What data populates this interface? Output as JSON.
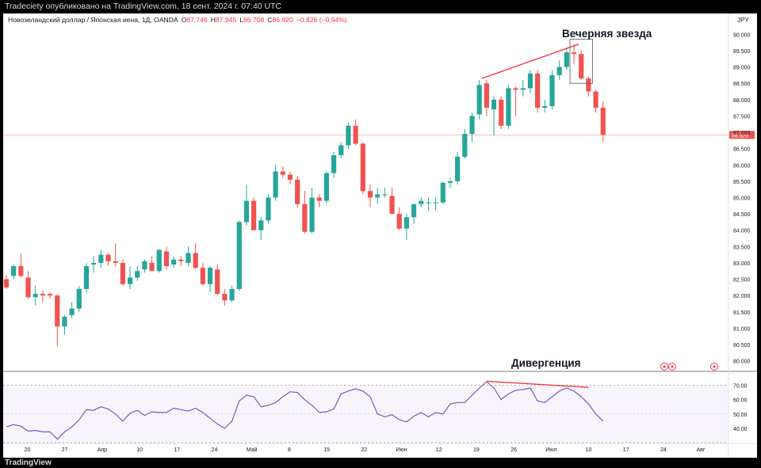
{
  "header": {
    "published": "Tradeciety опубликовано на TradingView.com, 18 сент. 2024 г. 07:40 UTC"
  },
  "footer": {
    "logo_text": "TradingView"
  },
  "symbol": {
    "name": "Новозеландский доллар / Японская иена, 1Д, OANDA",
    "o_label": "O",
    "o_value": "87.746",
    "h_label": "H",
    "h_value": "87.945",
    "l_label": "L",
    "l_value": "86.708",
    "c_label": "C",
    "c_value": "86.920",
    "change": "−0.826 (−0.94%)",
    "currency": "JPY",
    "last_price": "86.920"
  },
  "annotations": {
    "evening_star": "Вечерняя звезда",
    "divergence": "Дивергенция"
  },
  "colors": {
    "up": "#26a69a",
    "down": "#ef5350",
    "rsi_line": "#7e57c2",
    "rsi_band": "#7e57c2",
    "trendline": "#f23645",
    "price_line": "#f7a9a9",
    "background": "#ffffff"
  },
  "chart_data": [
    {
      "type": "candlestick",
      "x_tick_labels": [
        "20",
        "27",
        "Апр",
        "10",
        "17",
        "24",
        "Май",
        "8",
        "15",
        "22",
        "Июн",
        "12",
        "19",
        "26",
        "Июл",
        "10",
        "17",
        "24",
        "Авг"
      ],
      "y_ticks": [
        80.0,
        80.5,
        81.0,
        81.5,
        82.0,
        82.5,
        83.0,
        83.5,
        84.0,
        84.5,
        85.0,
        85.5,
        86.0,
        86.5,
        87.0,
        87.5,
        88.0,
        88.5,
        89.0,
        89.5,
        90.0
      ],
      "y_tick_labels": [
        "80.000",
        "80.500",
        "81.000",
        "81.500",
        "82.000",
        "82.500",
        "83.000",
        "83.500",
        "84.000",
        "84.500",
        "85.000",
        "85.500",
        "86.000",
        "86.500",
        "87.000",
        "87.500",
        "88.000",
        "88.500",
        "89.000",
        "89.500",
        "90.000"
      ],
      "ylim": [
        79.7,
        90.3
      ],
      "candles": [
        [
          82.5,
          82.62,
          82.2,
          82.25
        ],
        [
          82.6,
          82.95,
          82.5,
          82.9
        ],
        [
          82.9,
          83.3,
          82.55,
          82.6
        ],
        [
          82.55,
          82.75,
          81.9,
          81.95
        ],
        [
          81.95,
          82.3,
          81.7,
          82.05
        ],
        [
          82.05,
          82.15,
          81.8,
          82.0
        ],
        [
          82.05,
          82.1,
          81.9,
          82.0
        ],
        [
          82.0,
          82.05,
          80.45,
          81.05
        ],
        [
          81.05,
          81.4,
          80.8,
          81.35
        ],
        [
          81.4,
          81.8,
          81.3,
          81.6
        ],
        [
          81.6,
          82.3,
          81.5,
          82.2
        ],
        [
          82.2,
          83.0,
          82.1,
          82.9
        ],
        [
          82.95,
          83.2,
          82.7,
          83.0
        ],
        [
          83.0,
          83.4,
          82.85,
          83.25
        ],
        [
          83.25,
          83.3,
          82.9,
          83.05
        ],
        [
          83.05,
          83.6,
          82.9,
          83.0
        ],
        [
          83.0,
          83.1,
          82.3,
          82.35
        ],
        [
          82.35,
          82.9,
          82.2,
          82.55
        ],
        [
          82.55,
          82.9,
          82.45,
          82.75
        ],
        [
          82.8,
          83.1,
          82.7,
          83.05
        ],
        [
          83.0,
          83.2,
          82.8,
          82.75
        ],
        [
          82.75,
          83.4,
          82.7,
          83.4
        ],
        [
          83.35,
          83.5,
          82.8,
          82.9
        ],
        [
          82.95,
          83.2,
          82.85,
          83.1
        ],
        [
          83.1,
          83.2,
          82.9,
          83.05
        ],
        [
          83.0,
          83.5,
          82.9,
          83.3
        ],
        [
          83.3,
          83.6,
          82.8,
          82.85
        ],
        [
          82.85,
          83.0,
          82.3,
          82.35
        ],
        [
          82.35,
          82.9,
          82.1,
          82.85
        ],
        [
          82.8,
          82.95,
          82.0,
          82.05
        ],
        [
          82.05,
          82.2,
          81.7,
          81.85
        ],
        [
          81.85,
          82.3,
          81.8,
          82.2
        ],
        [
          82.2,
          84.3,
          82.15,
          84.25
        ],
        [
          84.25,
          85.4,
          84.15,
          84.9
        ],
        [
          84.9,
          85.0,
          84.1,
          84.0
        ],
        [
          84.0,
          84.4,
          83.7,
          84.3
        ],
        [
          84.3,
          85.1,
          84.2,
          85.0
        ],
        [
          85.0,
          86.0,
          84.9,
          85.8
        ],
        [
          85.8,
          85.95,
          85.6,
          85.7
        ],
        [
          85.7,
          85.8,
          85.4,
          85.55
        ],
        [
          85.55,
          85.65,
          84.7,
          84.8
        ],
        [
          84.8,
          85.2,
          83.9,
          83.95
        ],
        [
          83.95,
          85.3,
          83.9,
          85.0
        ],
        [
          85.0,
          85.1,
          84.7,
          84.9
        ],
        [
          84.9,
          85.8,
          84.8,
          85.75
        ],
        [
          85.75,
          86.4,
          85.6,
          86.3
        ],
        [
          86.3,
          86.7,
          86.2,
          86.6
        ],
        [
          86.6,
          87.3,
          86.5,
          87.2
        ],
        [
          87.2,
          87.4,
          86.6,
          86.65
        ],
        [
          86.65,
          86.7,
          85.1,
          85.2
        ],
        [
          85.2,
          85.4,
          84.7,
          85.0
        ],
        [
          85.0,
          85.3,
          84.8,
          85.1
        ],
        [
          85.1,
          85.3,
          85.0,
          85.1
        ],
        [
          85.05,
          85.3,
          84.5,
          84.5
        ],
        [
          84.5,
          84.7,
          84.0,
          84.05
        ],
        [
          84.05,
          84.5,
          83.7,
          84.4
        ],
        [
          84.4,
          84.8,
          84.2,
          84.8
        ],
        [
          84.8,
          85.0,
          84.7,
          84.9
        ],
        [
          84.85,
          85.0,
          84.6,
          84.85
        ],
        [
          84.85,
          85.0,
          84.6,
          84.85
        ],
        [
          84.85,
          85.5,
          84.8,
          85.45
        ],
        [
          85.45,
          85.6,
          85.3,
          85.5
        ],
        [
          85.5,
          86.4,
          85.4,
          86.25
        ],
        [
          86.25,
          87.1,
          86.2,
          86.95
        ],
        [
          86.95,
          87.6,
          86.7,
          87.5
        ],
        [
          87.55,
          88.6,
          87.4,
          88.45
        ],
        [
          88.5,
          88.6,
          87.5,
          87.75
        ],
        [
          87.7,
          88.1,
          86.9,
          88.0
        ],
        [
          88.0,
          88.1,
          87.1,
          87.2
        ],
        [
          87.2,
          88.45,
          87.1,
          88.35
        ],
        [
          88.35,
          88.4,
          87.5,
          88.3
        ],
        [
          88.3,
          88.6,
          88.1,
          88.35
        ],
        [
          88.35,
          88.9,
          88.2,
          88.8
        ],
        [
          88.8,
          88.9,
          87.6,
          87.75
        ],
        [
          87.75,
          88.0,
          87.6,
          87.8
        ],
        [
          87.8,
          88.9,
          87.7,
          88.75
        ],
        [
          88.75,
          89.2,
          88.6,
          89.0
        ],
        [
          89.0,
          89.6,
          88.9,
          89.45
        ],
        [
          89.45,
          89.7,
          89.1,
          89.4
        ],
        [
          89.4,
          89.5,
          88.6,
          88.65
        ],
        [
          88.65,
          88.7,
          88.1,
          88.25
        ],
        [
          88.25,
          88.3,
          87.6,
          87.75
        ],
        [
          87.75,
          87.95,
          86.71,
          86.92
        ]
      ]
    },
    {
      "type": "line",
      "y_ticks": [
        40.0,
        50.0,
        60.0,
        70.0
      ],
      "y_tick_labels": [
        "40.00",
        "50.00",
        "60.00",
        "70.00"
      ],
      "ylim": [
        30.0,
        78.0
      ],
      "bands": [
        30,
        70
      ],
      "series": [
        {
          "values": [
            41,
            42.5,
            41.5,
            38,
            38.5,
            37.5,
            37.5,
            32.5,
            37.5,
            41,
            46,
            53,
            52.5,
            55,
            53.5,
            50,
            45,
            50.5,
            52.5,
            49,
            51.5,
            51,
            51,
            54,
            53,
            52,
            54,
            51,
            47,
            43,
            40,
            45,
            59,
            63,
            62,
            55,
            56,
            58,
            62,
            65.5,
            65,
            60,
            56,
            51,
            51.5,
            53.5,
            64,
            66,
            67.5,
            66,
            62,
            50,
            48,
            49.5,
            46,
            44.5,
            48.5,
            51,
            48,
            51,
            50,
            57,
            58,
            58,
            63,
            68,
            72.5,
            68,
            60,
            64,
            66.5,
            67,
            68,
            59,
            58,
            62,
            66,
            68,
            66,
            62,
            57,
            50,
            45
          ]
        }
      ]
    }
  ]
}
